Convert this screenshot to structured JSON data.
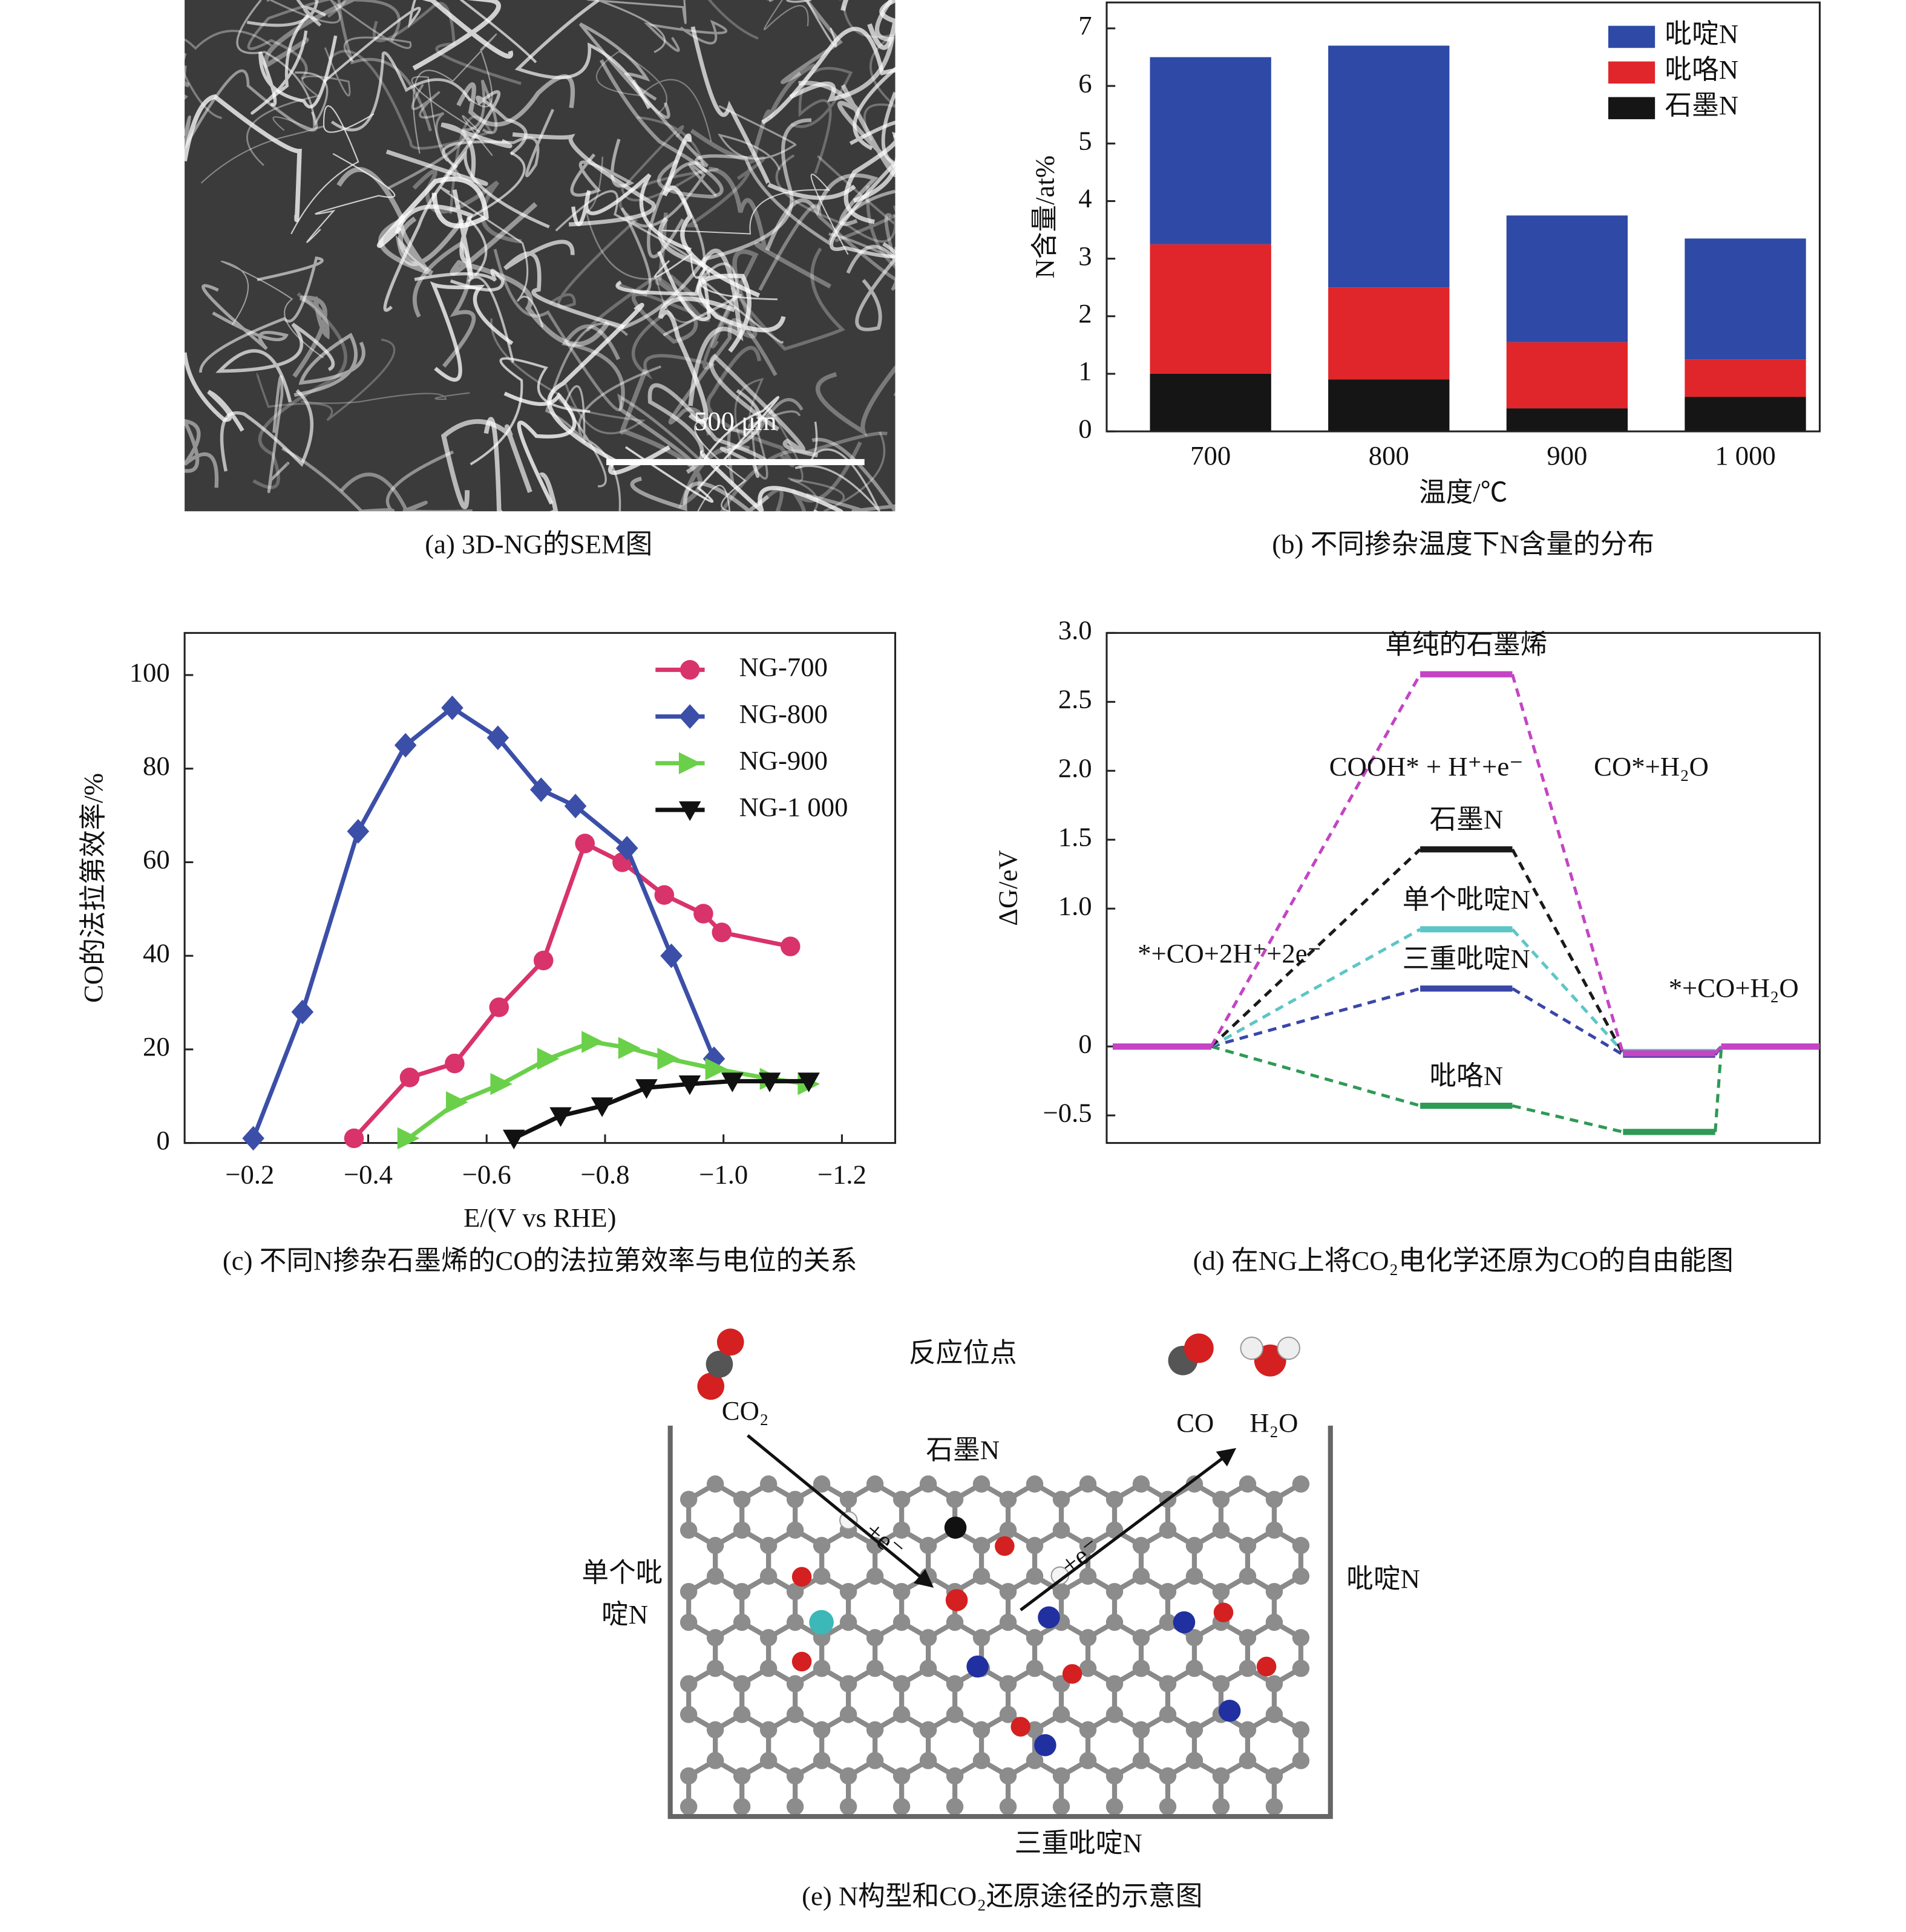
{
  "sem_image": {
    "scale_bar": "500 μm",
    "caption": "(a) 3D-NG的SEM图"
  },
  "chart_data": [
    {
      "type": "bar",
      "stacked": true,
      "categories": [
        "700",
        "800",
        "900",
        "1 000"
      ],
      "series": [
        {
          "name": "吡啶N",
          "color": "#2e4aa6",
          "values": [
            3.25,
            4.2,
            2.2,
            2.1
          ]
        },
        {
          "name": "吡咯N",
          "color": "#e0262a",
          "values": [
            2.25,
            1.6,
            1.15,
            0.65
          ]
        },
        {
          "name": "石墨N",
          "color": "#151515",
          "values": [
            1.0,
            0.9,
            0.4,
            0.6
          ]
        }
      ],
      "ylim": [
        0,
        7.45
      ],
      "yticks": [
        0,
        1,
        2,
        3,
        4,
        5,
        6,
        7
      ],
      "x_label": "温度/℃",
      "y_label": "N含量/at%",
      "legend": "upper right",
      "caption": "(b) 不同掺杂温度下N含量的分布"
    },
    {
      "type": "line",
      "series": [
        {
          "name": "NG-700",
          "color": "#d8336a",
          "marker": "circle",
          "x": [
            -0.376,
            -0.47,
            -0.546,
            -0.621,
            -0.696,
            -0.766,
            -0.829,
            -0.9,
            -0.966,
            -0.997,
            -1.113
          ],
          "values": [
            1,
            14,
            17,
            29,
            39,
            64,
            60,
            53,
            49,
            45,
            42
          ]
        },
        {
          "name": "NG-800",
          "color": "#3b4fa8",
          "marker": "diamond",
          "x": [
            -0.206,
            -0.289,
            -0.383,
            -0.463,
            -0.542,
            -0.619,
            -0.692,
            -0.75,
            -0.837,
            -0.912,
            -0.984
          ],
          "values": [
            1,
            28,
            66.6,
            85,
            93,
            86.6,
            75.5,
            72,
            63,
            40,
            18
          ]
        },
        {
          "name": "NG-900",
          "color": "#6ad04a",
          "marker": "triangle-right",
          "x": [
            -0.468,
            -0.55,
            -0.625,
            -0.704,
            -0.779,
            -0.841,
            -0.907,
            -0.988,
            -1.08,
            -1.144
          ],
          "values": [
            1,
            8.7,
            12.6,
            18,
            21.6,
            20.3,
            18,
            15.8,
            13.7,
            12.6
          ]
        },
        {
          "name": "NG-1 000",
          "color": "#111111",
          "marker": "triangle-down",
          "x": [
            -0.646,
            -0.725,
            -0.795,
            -0.87,
            -0.943,
            -1.015,
            -1.078,
            -1.144
          ],
          "values": [
            1,
            5.8,
            7.9,
            11.8,
            12.6,
            13.2,
            13.2,
            13.2
          ]
        }
      ],
      "xlim": [
        -0.09,
        -1.29
      ],
      "xticks": [
        {
          "value": -0.2,
          "label": "−0.2"
        },
        {
          "value": -0.4,
          "label": "−0.4"
        },
        {
          "value": -0.6,
          "label": "−0.6"
        },
        {
          "value": -0.8,
          "label": "−0.8"
        },
        {
          "value": -1.0,
          "label": "−1.0"
        },
        {
          "value": -1.2,
          "label": "−1.2"
        }
      ],
      "ylim": [
        0,
        109
      ],
      "yticks": [
        0,
        20,
        40,
        60,
        80,
        100
      ],
      "x_label": "E/(V vs RHE)",
      "y_label": "CO的法拉第效率/%",
      "legend": "upper right",
      "caption": "(c) 不同N掺杂石墨烯的CO的法拉第效率与电位的关系"
    },
    {
      "type": "step",
      "categories": [
        null,
        null,
        null,
        null
      ],
      "series": [
        {
          "name": "单纯的石墨烯",
          "color": "#c444c4",
          "values": [
            0,
            2.7,
            -0.05,
            0
          ]
        },
        {
          "name": "石墨N",
          "color": "#1a1a1a",
          "values": [
            0,
            1.43,
            -0.05,
            0
          ]
        },
        {
          "name": "单个吡啶N",
          "color": "#5cc6c6",
          "values": [
            0,
            0.85,
            -0.04,
            0
          ]
        },
        {
          "name": "三重吡啶N",
          "color": "#3a46a8",
          "values": [
            0,
            0.42,
            -0.06,
            0
          ]
        },
        {
          "name": "吡咯N",
          "color": "#2e9a55",
          "values": [
            0,
            -0.43,
            -0.62,
            0
          ]
        }
      ],
      "ylim": [
        -0.7,
        3.0
      ],
      "yticks": [
        {
          "value": -0.5,
          "label": "−0.5"
        },
        0,
        {
          "value": 1.0,
          "label": "1.0"
        },
        1.5,
        {
          "value": 2.0,
          "label": "2.0"
        },
        2.5,
        {
          "value": 3.0,
          "label": "3.0"
        }
      ],
      "y_label": "ΔG/eV",
      "annotations": [
        "COOH* + H⁺+e⁻",
        "CO*+H₂O",
        "*+CO+2H⁺+2e⁻",
        "*+CO+H₂O"
      ],
      "caption": "(d) 在NG上将CO₂电化学还原为CO的自由能图"
    }
  ],
  "schematic": {
    "reaction_site": "反应位点",
    "co2": "CO₂",
    "co": "CO",
    "h2o": "H₂O",
    "graphitic_n": "石墨N",
    "single_pyridinic_n": [
      "单个吡",
      "啶N"
    ],
    "pyridinic_n": "吡啶N",
    "triple_pyridinic_n": "三重吡啶N",
    "electron_in": "+e⁻",
    "electron_out": "+e⁻",
    "caption": "(e) N构型和CO₂还原途径的示意图"
  }
}
